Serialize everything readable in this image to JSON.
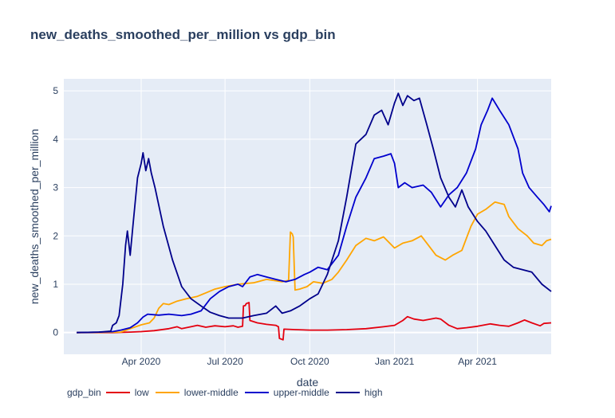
{
  "chart_data": {
    "type": "line",
    "title": "new_deaths_smoothed_per_million vs gdp_bin",
    "xlabel": "date",
    "ylabel": "new_deaths_smoothed_per_million",
    "legend_title": "gdp_bin",
    "legend_position": "bottom",
    "grid": true,
    "xlim": [
      "2020-01-08",
      "2021-06-20"
    ],
    "ylim": [
      -0.45,
      5.25
    ],
    "x_ticks": [
      {
        "date": "2020-04-01",
        "label": "Apr 2020"
      },
      {
        "date": "2020-07-01",
        "label": "Jul 2020"
      },
      {
        "date": "2020-10-01",
        "label": "Oct 2020"
      },
      {
        "date": "2021-01-01",
        "label": "Jan 2021"
      },
      {
        "date": "2021-04-01",
        "label": "Apr 2021"
      }
    ],
    "y_ticks": [
      0,
      1,
      2,
      3,
      4,
      5
    ],
    "series": [
      {
        "name": "low",
        "color": "#e4000f",
        "points": [
          [
            "2020-01-22",
            0
          ],
          [
            "2020-03-01",
            0
          ],
          [
            "2020-03-20",
            0.01
          ],
          [
            "2020-04-01",
            0.02
          ],
          [
            "2020-04-15",
            0.04
          ],
          [
            "2020-05-01",
            0.08
          ],
          [
            "2020-05-10",
            0.12
          ],
          [
            "2020-05-15",
            0.08
          ],
          [
            "2020-05-25",
            0.12
          ],
          [
            "2020-06-01",
            0.15
          ],
          [
            "2020-06-10",
            0.11
          ],
          [
            "2020-06-20",
            0.14
          ],
          [
            "2020-07-01",
            0.12
          ],
          [
            "2020-07-10",
            0.14
          ],
          [
            "2020-07-15",
            0.11
          ],
          [
            "2020-07-20",
            0.13
          ],
          [
            "2020-07-21",
            0.55
          ],
          [
            "2020-07-23",
            0.56
          ],
          [
            "2020-07-24",
            0.6
          ],
          [
            "2020-07-27",
            0.62
          ],
          [
            "2020-07-28",
            0.25
          ],
          [
            "2020-08-05",
            0.2
          ],
          [
            "2020-08-15",
            0.17
          ],
          [
            "2020-08-25",
            0.15
          ],
          [
            "2020-08-28",
            0.12
          ],
          [
            "2020-08-29",
            -0.12
          ],
          [
            "2020-09-02",
            -0.15
          ],
          [
            "2020-09-03",
            0.07
          ],
          [
            "2020-09-15",
            0.06
          ],
          [
            "2020-10-01",
            0.05
          ],
          [
            "2020-10-20",
            0.05
          ],
          [
            "2020-11-10",
            0.06
          ],
          [
            "2020-12-01",
            0.08
          ],
          [
            "2020-12-20",
            0.12
          ],
          [
            "2021-01-01",
            0.15
          ],
          [
            "2021-01-10",
            0.25
          ],
          [
            "2021-01-15",
            0.33
          ],
          [
            "2021-01-22",
            0.28
          ],
          [
            "2021-02-01",
            0.25
          ],
          [
            "2021-02-15",
            0.3
          ],
          [
            "2021-02-20",
            0.28
          ],
          [
            "2021-03-01",
            0.15
          ],
          [
            "2021-03-10",
            0.08
          ],
          [
            "2021-03-20",
            0.1
          ],
          [
            "2021-04-01",
            0.13
          ],
          [
            "2021-04-15",
            0.18
          ],
          [
            "2021-04-25",
            0.15
          ],
          [
            "2021-05-05",
            0.13
          ],
          [
            "2021-05-15",
            0.2
          ],
          [
            "2021-05-22",
            0.26
          ],
          [
            "2021-05-30",
            0.2
          ],
          [
            "2021-06-08",
            0.14
          ],
          [
            "2021-06-12",
            0.19
          ],
          [
            "2021-06-20",
            0.2
          ]
        ]
      },
      {
        "name": "lower-middle",
        "color": "#ffa500",
        "points": [
          [
            "2020-01-22",
            0
          ],
          [
            "2020-03-10",
            0.01
          ],
          [
            "2020-03-20",
            0.08
          ],
          [
            "2020-04-01",
            0.16
          ],
          [
            "2020-04-10",
            0.2
          ],
          [
            "2020-04-15",
            0.3
          ],
          [
            "2020-04-20",
            0.5
          ],
          [
            "2020-04-25",
            0.6
          ],
          [
            "2020-05-01",
            0.58
          ],
          [
            "2020-05-10",
            0.65
          ],
          [
            "2020-05-20",
            0.7
          ],
          [
            "2020-06-01",
            0.75
          ],
          [
            "2020-06-10",
            0.82
          ],
          [
            "2020-06-20",
            0.9
          ],
          [
            "2020-07-01",
            0.95
          ],
          [
            "2020-07-15",
            1.0
          ],
          [
            "2020-08-01",
            1.03
          ],
          [
            "2020-08-15",
            1.1
          ],
          [
            "2020-09-01",
            1.05
          ],
          [
            "2020-09-08",
            1.08
          ],
          [
            "2020-09-10",
            2.08
          ],
          [
            "2020-09-12",
            2.04
          ],
          [
            "2020-09-13",
            1.98
          ],
          [
            "2020-09-15",
            0.88
          ],
          [
            "2020-09-20",
            0.9
          ],
          [
            "2020-09-28",
            0.95
          ],
          [
            "2020-10-05",
            1.05
          ],
          [
            "2020-10-15",
            1.02
          ],
          [
            "2020-10-25",
            1.1
          ],
          [
            "2020-11-01",
            1.25
          ],
          [
            "2020-11-10",
            1.5
          ],
          [
            "2020-11-20",
            1.8
          ],
          [
            "2020-12-01",
            1.95
          ],
          [
            "2020-12-10",
            1.9
          ],
          [
            "2020-12-20",
            1.98
          ],
          [
            "2021-01-01",
            1.75
          ],
          [
            "2021-01-10",
            1.85
          ],
          [
            "2021-01-20",
            1.9
          ],
          [
            "2021-01-30",
            2.0
          ],
          [
            "2021-02-05",
            1.85
          ],
          [
            "2021-02-15",
            1.6
          ],
          [
            "2021-02-25",
            1.5
          ],
          [
            "2021-03-05",
            1.6
          ],
          [
            "2021-03-15",
            1.7
          ],
          [
            "2021-03-20",
            1.95
          ],
          [
            "2021-03-25",
            2.2
          ],
          [
            "2021-04-01",
            2.45
          ],
          [
            "2021-04-10",
            2.55
          ],
          [
            "2021-04-20",
            2.7
          ],
          [
            "2021-04-30",
            2.65
          ],
          [
            "2021-05-05",
            2.4
          ],
          [
            "2021-05-15",
            2.15
          ],
          [
            "2021-05-25",
            2.0
          ],
          [
            "2021-06-01",
            1.85
          ],
          [
            "2021-06-10",
            1.8
          ],
          [
            "2021-06-15",
            1.9
          ],
          [
            "2021-06-20",
            1.93
          ]
        ]
      },
      {
        "name": "upper-middle",
        "color": "#0000cd",
        "points": [
          [
            "2020-01-22",
            0
          ],
          [
            "2020-02-15",
            0.01
          ],
          [
            "2020-03-01",
            0.02
          ],
          [
            "2020-03-10",
            0.05
          ],
          [
            "2020-03-20",
            0.1
          ],
          [
            "2020-03-28",
            0.2
          ],
          [
            "2020-04-03",
            0.32
          ],
          [
            "2020-04-08",
            0.38
          ],
          [
            "2020-04-20",
            0.36
          ],
          [
            "2020-05-01",
            0.38
          ],
          [
            "2020-05-15",
            0.35
          ],
          [
            "2020-05-25",
            0.38
          ],
          [
            "2020-06-05",
            0.45
          ],
          [
            "2020-06-15",
            0.7
          ],
          [
            "2020-06-25",
            0.85
          ],
          [
            "2020-07-05",
            0.95
          ],
          [
            "2020-07-15",
            1.0
          ],
          [
            "2020-07-20",
            0.95
          ],
          [
            "2020-07-28",
            1.15
          ],
          [
            "2020-08-05",
            1.2
          ],
          [
            "2020-08-15",
            1.15
          ],
          [
            "2020-08-25",
            1.1
          ],
          [
            "2020-09-05",
            1.05
          ],
          [
            "2020-09-15",
            1.1
          ],
          [
            "2020-09-25",
            1.2
          ],
          [
            "2020-10-01",
            1.25
          ],
          [
            "2020-10-10",
            1.35
          ],
          [
            "2020-10-20",
            1.3
          ],
          [
            "2020-11-01",
            1.6
          ],
          [
            "2020-11-10",
            2.2
          ],
          [
            "2020-11-20",
            2.8
          ],
          [
            "2020-12-01",
            3.2
          ],
          [
            "2020-12-10",
            3.6
          ],
          [
            "2020-12-20",
            3.65
          ],
          [
            "2020-12-28",
            3.7
          ],
          [
            "2021-01-01",
            3.5
          ],
          [
            "2021-01-05",
            3.0
          ],
          [
            "2021-01-12",
            3.1
          ],
          [
            "2021-01-20",
            3.0
          ],
          [
            "2021-02-01",
            3.05
          ],
          [
            "2021-02-10",
            2.9
          ],
          [
            "2021-02-20",
            2.6
          ],
          [
            "2021-03-01",
            2.85
          ],
          [
            "2021-03-10",
            3.0
          ],
          [
            "2021-03-20",
            3.3
          ],
          [
            "2021-03-30",
            3.8
          ],
          [
            "2021-04-05",
            4.3
          ],
          [
            "2021-04-12",
            4.6
          ],
          [
            "2021-04-17",
            4.85
          ],
          [
            "2021-04-25",
            4.6
          ],
          [
            "2021-05-05",
            4.3
          ],
          [
            "2021-05-15",
            3.8
          ],
          [
            "2021-05-20",
            3.3
          ],
          [
            "2021-05-27",
            3.0
          ],
          [
            "2021-06-05",
            2.8
          ],
          [
            "2021-06-12",
            2.65
          ],
          [
            "2021-06-18",
            2.5
          ],
          [
            "2021-06-20",
            2.62
          ]
        ]
      },
      {
        "name": "high",
        "color": "#00008b",
        "points": [
          [
            "2020-01-22",
            0
          ],
          [
            "2020-02-15",
            0.01
          ],
          [
            "2020-02-28",
            0.03
          ],
          [
            "2020-03-01",
            0.15
          ],
          [
            "2020-03-05",
            0.2
          ],
          [
            "2020-03-08",
            0.35
          ],
          [
            "2020-03-12",
            1.0
          ],
          [
            "2020-03-15",
            1.8
          ],
          [
            "2020-03-17",
            2.1
          ],
          [
            "2020-03-20",
            1.6
          ],
          [
            "2020-03-23",
            2.2
          ],
          [
            "2020-03-28",
            3.2
          ],
          [
            "2020-04-01",
            3.5
          ],
          [
            "2020-04-03",
            3.72
          ],
          [
            "2020-04-06",
            3.35
          ],
          [
            "2020-04-09",
            3.6
          ],
          [
            "2020-04-12",
            3.3
          ],
          [
            "2020-04-16",
            3.0
          ],
          [
            "2020-04-25",
            2.2
          ],
          [
            "2020-05-05",
            1.5
          ],
          [
            "2020-05-15",
            0.95
          ],
          [
            "2020-05-25",
            0.7
          ],
          [
            "2020-06-05",
            0.55
          ],
          [
            "2020-06-15",
            0.42
          ],
          [
            "2020-06-25",
            0.35
          ],
          [
            "2020-07-05",
            0.3
          ],
          [
            "2020-07-20",
            0.3
          ],
          [
            "2020-08-01",
            0.35
          ],
          [
            "2020-08-15",
            0.4
          ],
          [
            "2020-08-25",
            0.55
          ],
          [
            "2020-09-01",
            0.4
          ],
          [
            "2020-09-10",
            0.45
          ],
          [
            "2020-09-20",
            0.55
          ],
          [
            "2020-10-01",
            0.7
          ],
          [
            "2020-10-10",
            0.8
          ],
          [
            "2020-10-20",
            1.2
          ],
          [
            "2020-11-01",
            1.9
          ],
          [
            "2020-11-10",
            2.8
          ],
          [
            "2020-11-20",
            3.9
          ],
          [
            "2020-12-01",
            4.1
          ],
          [
            "2020-12-10",
            4.5
          ],
          [
            "2020-12-18",
            4.6
          ],
          [
            "2020-12-25",
            4.3
          ],
          [
            "2021-01-01",
            4.75
          ],
          [
            "2021-01-05",
            4.95
          ],
          [
            "2021-01-10",
            4.7
          ],
          [
            "2021-01-15",
            4.9
          ],
          [
            "2021-01-22",
            4.8
          ],
          [
            "2021-01-28",
            4.85
          ],
          [
            "2021-02-05",
            4.3
          ],
          [
            "2021-02-12",
            3.8
          ],
          [
            "2021-02-20",
            3.2
          ],
          [
            "2021-03-01",
            2.8
          ],
          [
            "2021-03-08",
            2.6
          ],
          [
            "2021-03-15",
            2.95
          ],
          [
            "2021-03-22",
            2.6
          ],
          [
            "2021-04-01",
            2.3
          ],
          [
            "2021-04-10",
            2.1
          ],
          [
            "2021-04-20",
            1.8
          ],
          [
            "2021-04-30",
            1.5
          ],
          [
            "2021-05-10",
            1.35
          ],
          [
            "2021-05-20",
            1.3
          ],
          [
            "2021-05-30",
            1.25
          ],
          [
            "2021-06-10",
            1.0
          ],
          [
            "2021-06-20",
            0.85
          ]
        ]
      }
    ]
  }
}
